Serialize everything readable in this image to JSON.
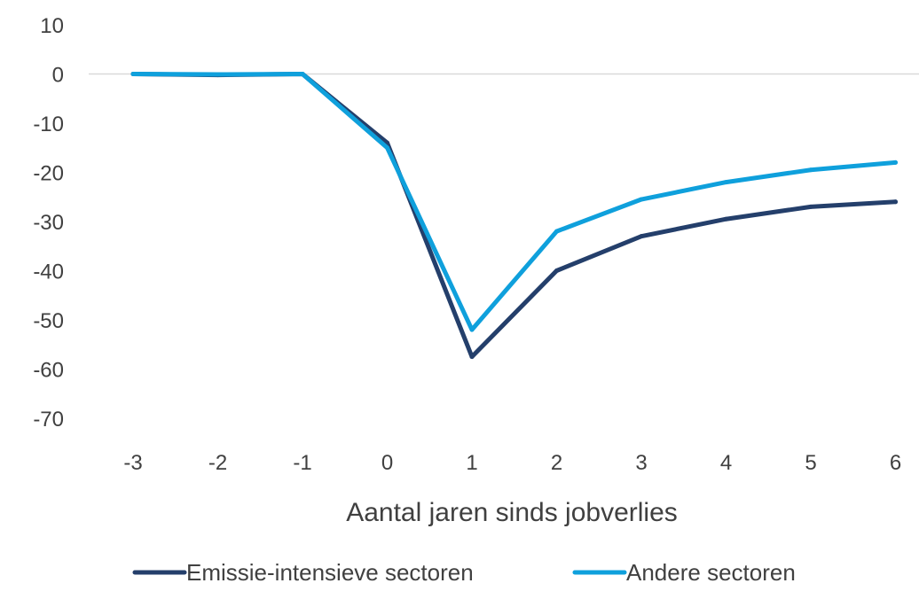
{
  "chart_data": {
    "type": "line",
    "title": "",
    "xlabel": "Aantal jaren sinds jobverlies",
    "ylabel": "",
    "x": [
      -3,
      -2,
      -1,
      0,
      1,
      2,
      3,
      4,
      5,
      6
    ],
    "x_tick_labels": [
      "-3",
      "-2",
      "-1",
      "0",
      "1",
      "2",
      "3",
      "4",
      "5",
      "6"
    ],
    "y_ticks": [
      10,
      0,
      -10,
      -20,
      -30,
      -40,
      -50,
      -60,
      -70
    ],
    "y_tick_labels": [
      "10",
      "0",
      "-10",
      "-20",
      "-30",
      "-40",
      "-50",
      "-60",
      "-70"
    ],
    "ylim": [
      -70,
      10
    ],
    "grid": false,
    "zero_line": true,
    "legend_position": "bottom",
    "series": [
      {
        "name": "Emissie-intensieve sectoren",
        "color": "#243f6b",
        "values": [
          0,
          -0.2,
          0,
          -14,
          -57.5,
          -40,
          -33,
          -29.5,
          -27,
          -26
        ]
      },
      {
        "name": "Andere sectoren",
        "color": "#0fa0dc",
        "values": [
          0,
          -0.1,
          0,
          -15,
          -52,
          -32,
          -25.5,
          -22,
          -19.5,
          -18
        ]
      }
    ]
  }
}
